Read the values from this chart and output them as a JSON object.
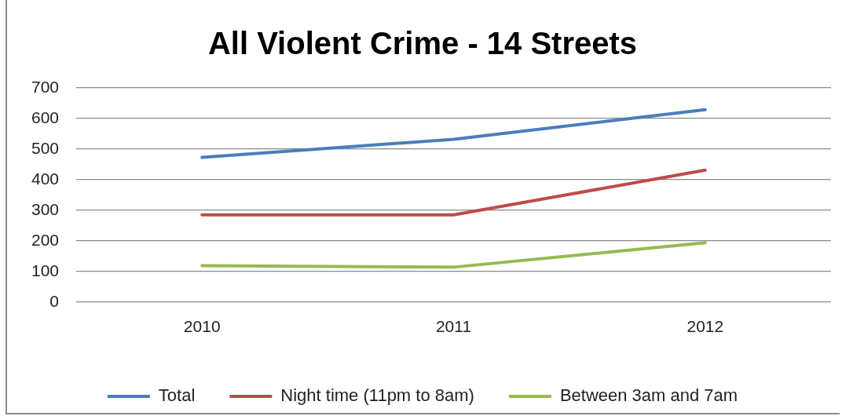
{
  "chart_data": {
    "type": "line",
    "title": "All Violent Crime - 14 Streets",
    "categories": [
      "2010",
      "2011",
      "2012"
    ],
    "series": [
      {
        "name": "Total",
        "color": "#4a7ebb",
        "values": [
          473,
          532,
          629
        ]
      },
      {
        "name": "Night time (11pm to 8am)",
        "color": "#be4b48",
        "values": [
          285,
          285,
          431
        ]
      },
      {
        "name": "Between 3am and 7am",
        "color": "#98b954",
        "values": [
          119,
          114,
          194
        ]
      }
    ],
    "ylim": [
      0,
      700
    ],
    "yticks": [
      0,
      100,
      200,
      300,
      400,
      500,
      600,
      700
    ],
    "grid": "y",
    "legend": "bottom"
  }
}
